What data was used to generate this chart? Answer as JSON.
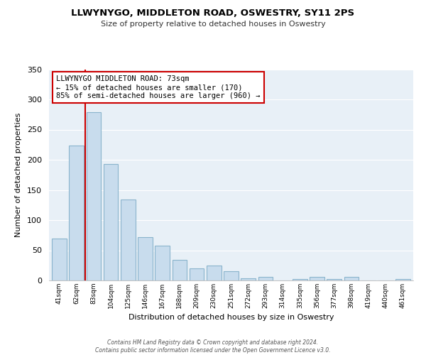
{
  "title": "LLWYNYGO, MIDDLETON ROAD, OSWESTRY, SY11 2PS",
  "subtitle": "Size of property relative to detached houses in Oswestry",
  "xlabel": "Distribution of detached houses by size in Oswestry",
  "ylabel": "Number of detached properties",
  "bar_labels": [
    "41sqm",
    "62sqm",
    "83sqm",
    "104sqm",
    "125sqm",
    "146sqm",
    "167sqm",
    "188sqm",
    "209sqm",
    "230sqm",
    "251sqm",
    "272sqm",
    "293sqm",
    "314sqm",
    "335sqm",
    "356sqm",
    "377sqm",
    "398sqm",
    "419sqm",
    "440sqm",
    "461sqm"
  ],
  "bar_values": [
    70,
    224,
    279,
    193,
    134,
    72,
    58,
    34,
    20,
    25,
    15,
    4,
    6,
    0,
    2,
    6,
    2,
    6,
    0,
    0,
    2
  ],
  "bar_color": "#c8dced",
  "bar_edge_color": "#8ab4cc",
  "marker_line_color": "#cc0000",
  "annotation_text": "LLWYNYGO MIDDLETON ROAD: 73sqm\n← 15% of detached houses are smaller (170)\n85% of semi-detached houses are larger (960) →",
  "annotation_box_color": "#ffffff",
  "annotation_box_edge": "#cc0000",
  "ylim": [
    0,
    350
  ],
  "yticks": [
    0,
    50,
    100,
    150,
    200,
    250,
    300,
    350
  ],
  "footer_text": "Contains HM Land Registry data © Crown copyright and database right 2024.\nContains public sector information licensed under the Open Government Licence v3.0.",
  "plot_bg_color": "#e8f0f7",
  "fig_bg_color": "#ffffff",
  "grid_color": "#ffffff"
}
